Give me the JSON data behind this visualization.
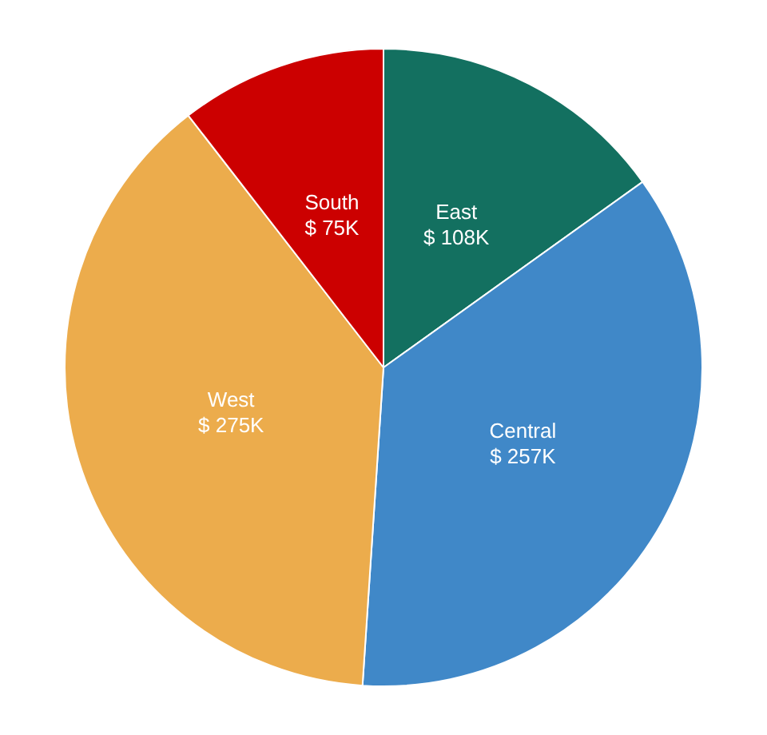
{
  "chart_data": {
    "type": "pie",
    "categories": [
      "East",
      "Central",
      "West",
      "South"
    ],
    "values": [
      108,
      257,
      275,
      75
    ],
    "colors": [
      "#137060",
      "#4088c8",
      "#ecac4c",
      "#cc0000"
    ],
    "value_labels": [
      "$ 108K",
      "$ 257K",
      "$ 275K",
      "$ 75K"
    ],
    "legend": false
  }
}
